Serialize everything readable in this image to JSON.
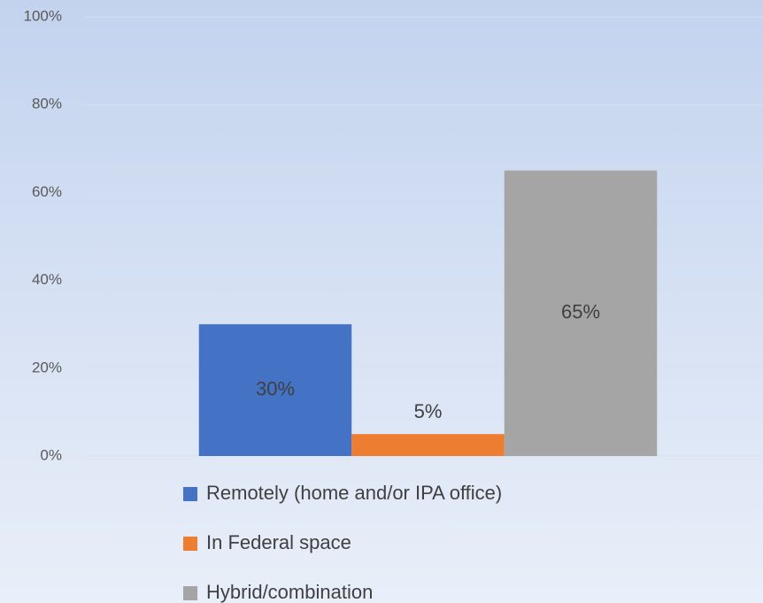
{
  "chart_data": {
    "type": "bar",
    "categories": [
      null
    ],
    "series": [
      {
        "name": "Remotely (home and/or IPA office)",
        "color": "#4472c4",
        "values": [
          30
        ],
        "value_labels": [
          "30%"
        ]
      },
      {
        "name": "In Federal space",
        "color": "#ed7d31",
        "values": [
          5
        ],
        "value_labels": [
          "5%"
        ]
      },
      {
        "name": "Hybrid/combination",
        "color": "#a5a5a5",
        "values": [
          65
        ],
        "value_labels": [
          "65%"
        ]
      }
    ],
    "ylim": [
      0,
      100
    ],
    "yticks": [
      {
        "value": 0,
        "label": "0%"
      },
      {
        "value": 20,
        "label": "20%"
      },
      {
        "value": 40,
        "label": "40%"
      },
      {
        "value": 60,
        "label": "60%"
      },
      {
        "value": 80,
        "label": "80%"
      },
      {
        "value": 100,
        "label": "100%"
      }
    ],
    "grid": true,
    "legend": "bottom"
  }
}
